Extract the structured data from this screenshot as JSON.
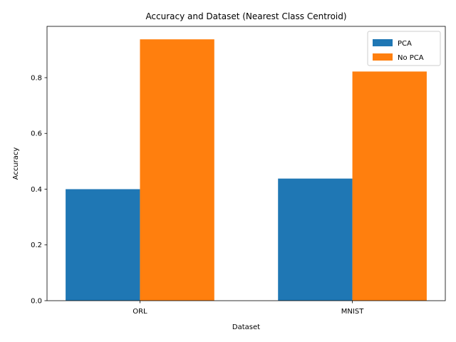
{
  "chart_data": {
    "type": "bar",
    "title": "Accuracy and Dataset (Nearest Class Centroid)",
    "xlabel": "Dataset",
    "ylabel": "Accuracy",
    "categories": [
      "ORL",
      "MNIST"
    ],
    "series": [
      {
        "name": "PCA",
        "values": [
          0.4,
          0.438
        ],
        "color": "#1f77b4"
      },
      {
        "name": "No PCA",
        "values": [
          0.9375,
          0.822
        ],
        "color": "#ff7f0e"
      }
    ],
    "ylim": [
      0,
      0.984
    ],
    "yticks": [
      0.0,
      0.2,
      0.4,
      0.6,
      0.8
    ],
    "ytick_labels": [
      "0.0",
      "0.2",
      "0.4",
      "0.6",
      "0.8"
    ],
    "grid": false,
    "legend_position": "top-right"
  }
}
